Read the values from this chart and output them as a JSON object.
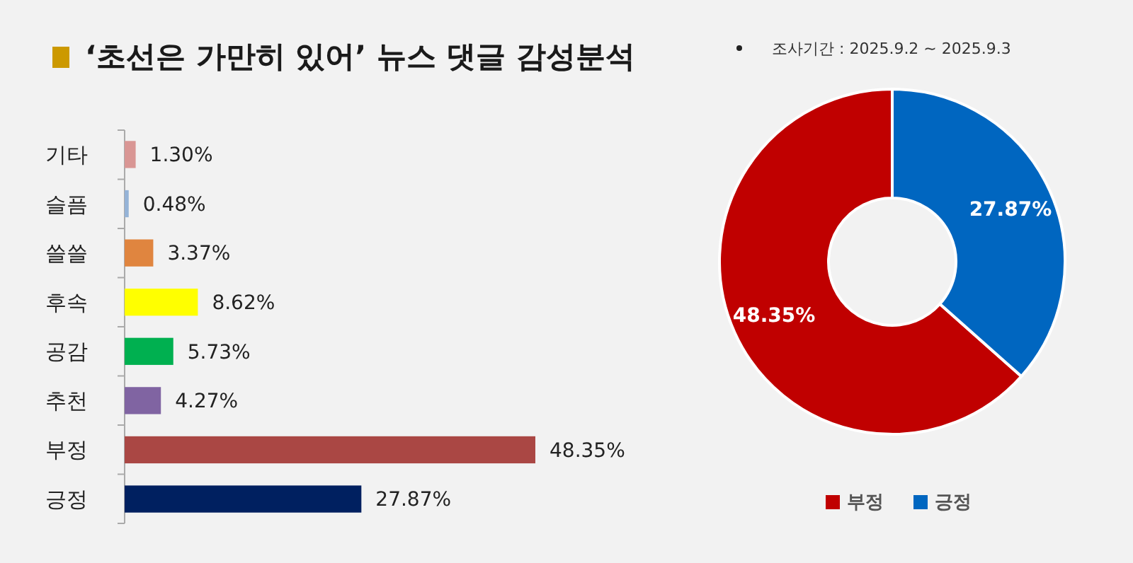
{
  "chart_data": [
    {
      "type": "bar",
      "orientation": "horizontal",
      "title": "‘초선은 가만히 있어’ 뉴스 댓글 감성분석",
      "categories": [
        "기타",
        "슬픔",
        "쓸쓸",
        "후속",
        "공감",
        "추천",
        "부정",
        "긍정"
      ],
      "values": [
        1.3,
        0.48,
        3.37,
        8.62,
        5.73,
        4.27,
        48.35,
        27.87
      ],
      "colors": [
        "#d99694",
        "#95b3d7",
        "#e0853f",
        "#ffff00",
        "#00b050",
        "#8064a2",
        "#aa4744",
        "#002060"
      ],
      "value_labels": [
        "1.30%",
        "0.48%",
        "3.37%",
        "8.62%",
        "5.73%",
        "4.27%",
        "48.35%",
        "27.87%"
      ]
    },
    {
      "type": "donut",
      "annotations": [
        "조사기간 : 2025.9.2 ~ 2025.9.3"
      ],
      "categories": [
        "부정",
        "긍정"
      ],
      "values": [
        48.35,
        27.87
      ],
      "colors": [
        "#c00000",
        "#0066c0"
      ],
      "value_labels": [
        "48.35%",
        "27.87%"
      ],
      "legend": "bottom"
    }
  ]
}
